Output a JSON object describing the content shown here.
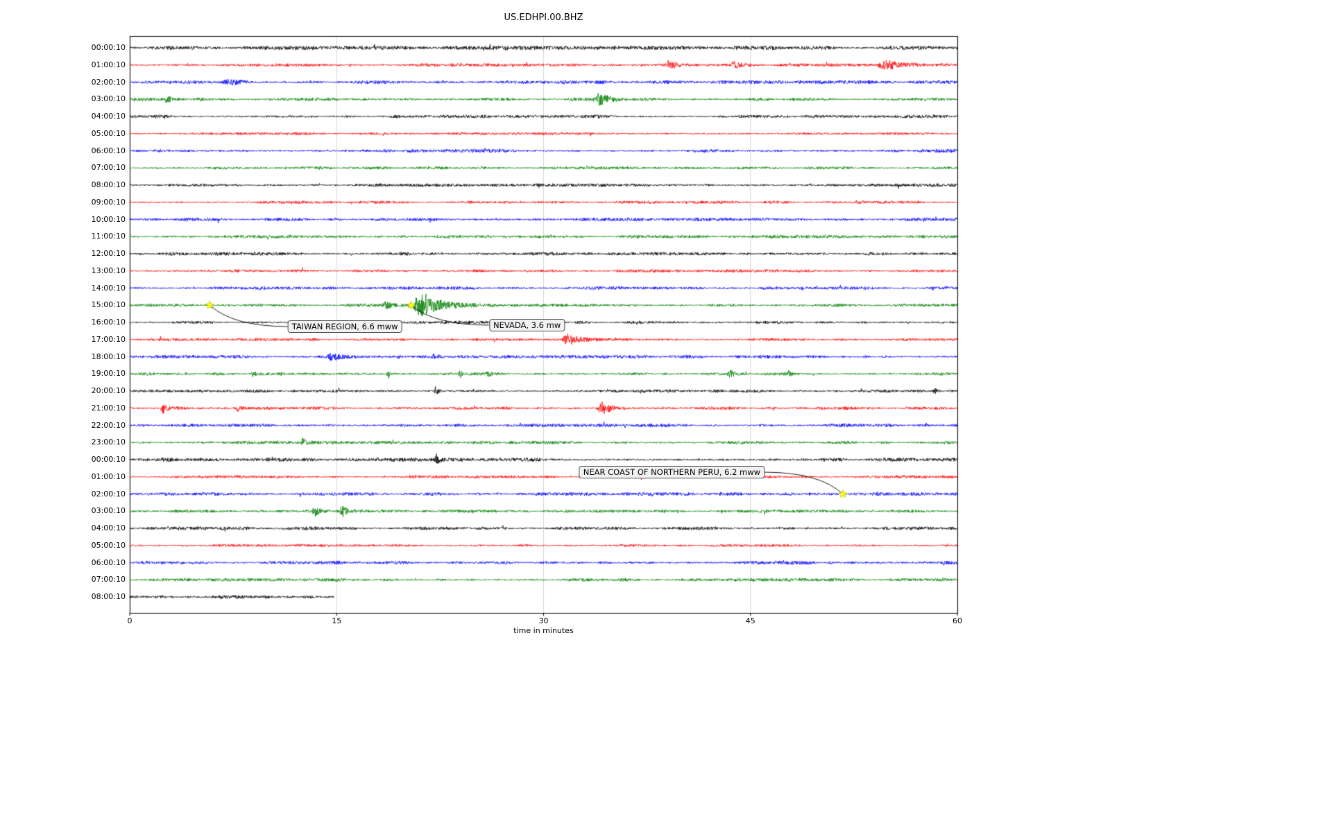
{
  "chart_data": {
    "type": "line",
    "subtype": "helicorder-dayplot",
    "title": "US.EDHPI.00.BHZ",
    "xlabel": "time in minutes",
    "x_ticks": [
      "0",
      "15",
      "30",
      "45",
      "60"
    ],
    "x_tick_values": [
      0,
      15,
      30,
      45,
      60
    ],
    "x_range": [
      0,
      60
    ],
    "grid": "vertical-only",
    "grid_color": "#cccccc",
    "frame_color": "#000000",
    "marker_color": "#ffff00",
    "marker_edge_color": "#b8b800",
    "trace_colors_cycle": [
      "#000000",
      "#ff0000",
      "#0000ff",
      "#008000"
    ],
    "rows": [
      {
        "label": "00:00:10",
        "color": "#000000",
        "amp": 1.9
      },
      {
        "label": "01:00:10",
        "color": "#ff0000",
        "amp": 1.5
      },
      {
        "label": "02:00:10",
        "color": "#0000ff",
        "amp": 1.7
      },
      {
        "label": "03:00:10",
        "color": "#008000",
        "amp": 1.5
      },
      {
        "label": "04:00:10",
        "color": "#000000",
        "amp": 1.5
      },
      {
        "label": "05:00:10",
        "color": "#ff0000",
        "amp": 1.3
      },
      {
        "label": "06:00:10",
        "color": "#0000ff",
        "amp": 1.7
      },
      {
        "label": "07:00:10",
        "color": "#008000",
        "amp": 1.4
      },
      {
        "label": "08:00:10",
        "color": "#000000",
        "amp": 1.5
      },
      {
        "label": "09:00:10",
        "color": "#ff0000",
        "amp": 1.4
      },
      {
        "label": "10:00:10",
        "color": "#0000ff",
        "amp": 1.6
      },
      {
        "label": "11:00:10",
        "color": "#008000",
        "amp": 1.5
      },
      {
        "label": "12:00:10",
        "color": "#000000",
        "amp": 1.6
      },
      {
        "label": "13:00:10",
        "color": "#ff0000",
        "amp": 1.4
      },
      {
        "label": "14:00:10",
        "color": "#0000ff",
        "amp": 1.6
      },
      {
        "label": "15:00:10",
        "color": "#008000",
        "amp": 1.5
      },
      {
        "label": "16:00:10",
        "color": "#000000",
        "amp": 1.4
      },
      {
        "label": "17:00:10",
        "color": "#ff0000",
        "amp": 1.4
      },
      {
        "label": "18:00:10",
        "color": "#0000ff",
        "amp": 1.6
      },
      {
        "label": "19:00:10",
        "color": "#008000",
        "amp": 1.5
      },
      {
        "label": "20:00:10",
        "color": "#000000",
        "amp": 1.5
      },
      {
        "label": "21:00:10",
        "color": "#ff0000",
        "amp": 1.5
      },
      {
        "label": "22:00:10",
        "color": "#0000ff",
        "amp": 1.6
      },
      {
        "label": "23:00:10",
        "color": "#008000",
        "amp": 1.5
      },
      {
        "label": "00:00:10",
        "color": "#000000",
        "amp": 1.8
      },
      {
        "label": "01:00:10",
        "color": "#ff0000",
        "amp": 1.4
      },
      {
        "label": "02:00:10",
        "color": "#0000ff",
        "amp": 1.6
      },
      {
        "label": "03:00:10",
        "color": "#008000",
        "amp": 1.4
      },
      {
        "label": "04:00:10",
        "color": "#000000",
        "amp": 1.6
      },
      {
        "label": "05:00:10",
        "color": "#ff0000",
        "amp": 1.3
      },
      {
        "label": "06:00:10",
        "color": "#0000ff",
        "amp": 1.7
      },
      {
        "label": "07:00:10",
        "color": "#008000",
        "amp": 1.5
      },
      {
        "label": "08:00:10",
        "color": "#000000",
        "amp": 1.9,
        "end_min": 14.8
      }
    ],
    "bursts": [
      {
        "row": 1,
        "start": 38.8,
        "end": 41.0,
        "amp": 4
      },
      {
        "row": 1,
        "start": 43.5,
        "end": 44.5,
        "amp": 5
      },
      {
        "row": 1,
        "start": 54.2,
        "end": 56.5,
        "amp": 7
      },
      {
        "row": 2,
        "start": 6.5,
        "end": 9.0,
        "amp": 2.5
      },
      {
        "row": 3,
        "start": 2.5,
        "end": 3.2,
        "amp": 5
      },
      {
        "row": 3,
        "start": 33.5,
        "end": 35.8,
        "amp": 8
      },
      {
        "row": 15,
        "start": 18.3,
        "end": 19.5,
        "amp": 6
      },
      {
        "row": 15,
        "start": 20.3,
        "end": 23.5,
        "amp": 16
      },
      {
        "row": 17,
        "start": 31.3,
        "end": 33.2,
        "amp": 8
      },
      {
        "row": 18,
        "start": 14.3,
        "end": 15.6,
        "amp": 6
      },
      {
        "row": 18,
        "start": 21.8,
        "end": 22.8,
        "amp": 5
      },
      {
        "row": 19,
        "start": 8.8,
        "end": 9.3,
        "amp": 5
      },
      {
        "row": 19,
        "start": 18.6,
        "end": 19.2,
        "amp": 6
      },
      {
        "row": 19,
        "start": 23.8,
        "end": 24.3,
        "amp": 6
      },
      {
        "row": 19,
        "start": 25.8,
        "end": 26.3,
        "amp": 5
      },
      {
        "row": 19,
        "start": 43.3,
        "end": 44.2,
        "amp": 5
      },
      {
        "row": 19,
        "start": 47.6,
        "end": 48.2,
        "amp": 4
      },
      {
        "row": 20,
        "start": 22.0,
        "end": 22.6,
        "amp": 6
      },
      {
        "row": 20,
        "start": 58.2,
        "end": 58.8,
        "amp": 4
      },
      {
        "row": 21,
        "start": 2.2,
        "end": 3.0,
        "amp": 8
      },
      {
        "row": 21,
        "start": 7.6,
        "end": 8.4,
        "amp": 5
      },
      {
        "row": 21,
        "start": 33.8,
        "end": 35.6,
        "amp": 9
      },
      {
        "row": 23,
        "start": 12.4,
        "end": 13.0,
        "amp": 6
      },
      {
        "row": 24,
        "start": 22.1,
        "end": 22.6,
        "amp": 6
      },
      {
        "row": 27,
        "start": 13.2,
        "end": 14.2,
        "amp": 7
      },
      {
        "row": 27,
        "start": 15.2,
        "end": 16.0,
        "amp": 8
      }
    ],
    "events": [
      {
        "name": "TAIWAN REGION, 6.6 mww",
        "row": 15,
        "x_min": 5.8,
        "label_x_min": 15.6,
        "label_row": 16.24
      },
      {
        "name": "NEVADA, 3.6 mw",
        "row": 15,
        "x_min": 20.4,
        "label_x_min": 28.8,
        "label_row": 16.16
      },
      {
        "name": "NEAR COAST OF NORTHERN PERU, 6.2 mww",
        "row": 26,
        "x_min": 51.7,
        "label_x_min": 39.3,
        "label_row": 24.73
      }
    ]
  }
}
